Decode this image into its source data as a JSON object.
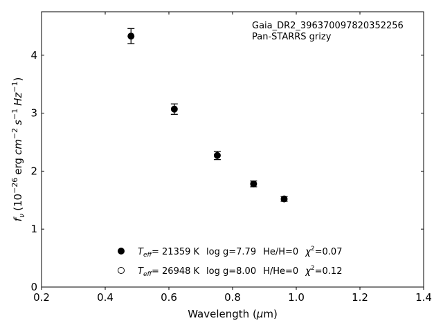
{
  "chart_data": {
    "type": "scatter",
    "xlabel_main": "Wavelength (",
    "xlabel_mu": "μ",
    "xlabel_unit": "m)",
    "ylabel_f": "f",
    "ylabel_nu": "ν",
    "ylabel_open": "(10",
    "ylabel_exp": "−26",
    "ylabel_erg": "erg",
    "ylabel_cm": "cm",
    "ylabel_cm_exp": "−2",
    "ylabel_s": "s",
    "ylabel_s_exp": "−1",
    "ylabel_hz": "Hz",
    "ylabel_hz_exp": "−1",
    "ylabel_close": ")",
    "xlim": [
      0.2,
      1.4
    ],
    "ylim": [
      0,
      4.75
    ],
    "xticks": [
      "0.2",
      "0.4",
      "0.6",
      "0.8",
      "1.0",
      "1.2",
      "1.4"
    ],
    "xtick_values": [
      0.2,
      0.4,
      0.6,
      0.8,
      1.0,
      1.2,
      1.4
    ],
    "yticks": [
      "0",
      "1",
      "2",
      "3",
      "4"
    ],
    "ytick_values": [
      0,
      1,
      2,
      3,
      4
    ],
    "grid": false,
    "annotation_line1": "Gaia_DR2_396370097820352256",
    "annotation_line2": "Pan-STARRS grizy",
    "points": [
      {
        "x": 0.481,
        "y": 4.33,
        "err": 0.13
      },
      {
        "x": 0.617,
        "y": 3.07,
        "err": 0.09
      },
      {
        "x": 0.752,
        "y": 2.27,
        "err": 0.07
      },
      {
        "x": 0.866,
        "y": 1.78,
        "err": 0.05
      },
      {
        "x": 0.962,
        "y": 1.52,
        "err": 0.04
      }
    ],
    "legend": [
      {
        "marker": "filled",
        "teff_T": "T",
        "teff_sub": "eff",
        "teff_value": "= 21359 K",
        "logg": "log g=7.79",
        "comp": "He/H=0",
        "chi_sym": "χ",
        "chi_exp": "2",
        "chi_value": "=0.07"
      },
      {
        "marker": "open",
        "teff_T": "T",
        "teff_sub": "eff",
        "teff_value": "= 26948 K",
        "logg": "log g=8.00",
        "comp": "H/He=0",
        "chi_sym": "χ",
        "chi_exp": "2",
        "chi_value": "=0.12"
      }
    ],
    "legend_placement": "lower-center",
    "marker_color": "#000000"
  }
}
